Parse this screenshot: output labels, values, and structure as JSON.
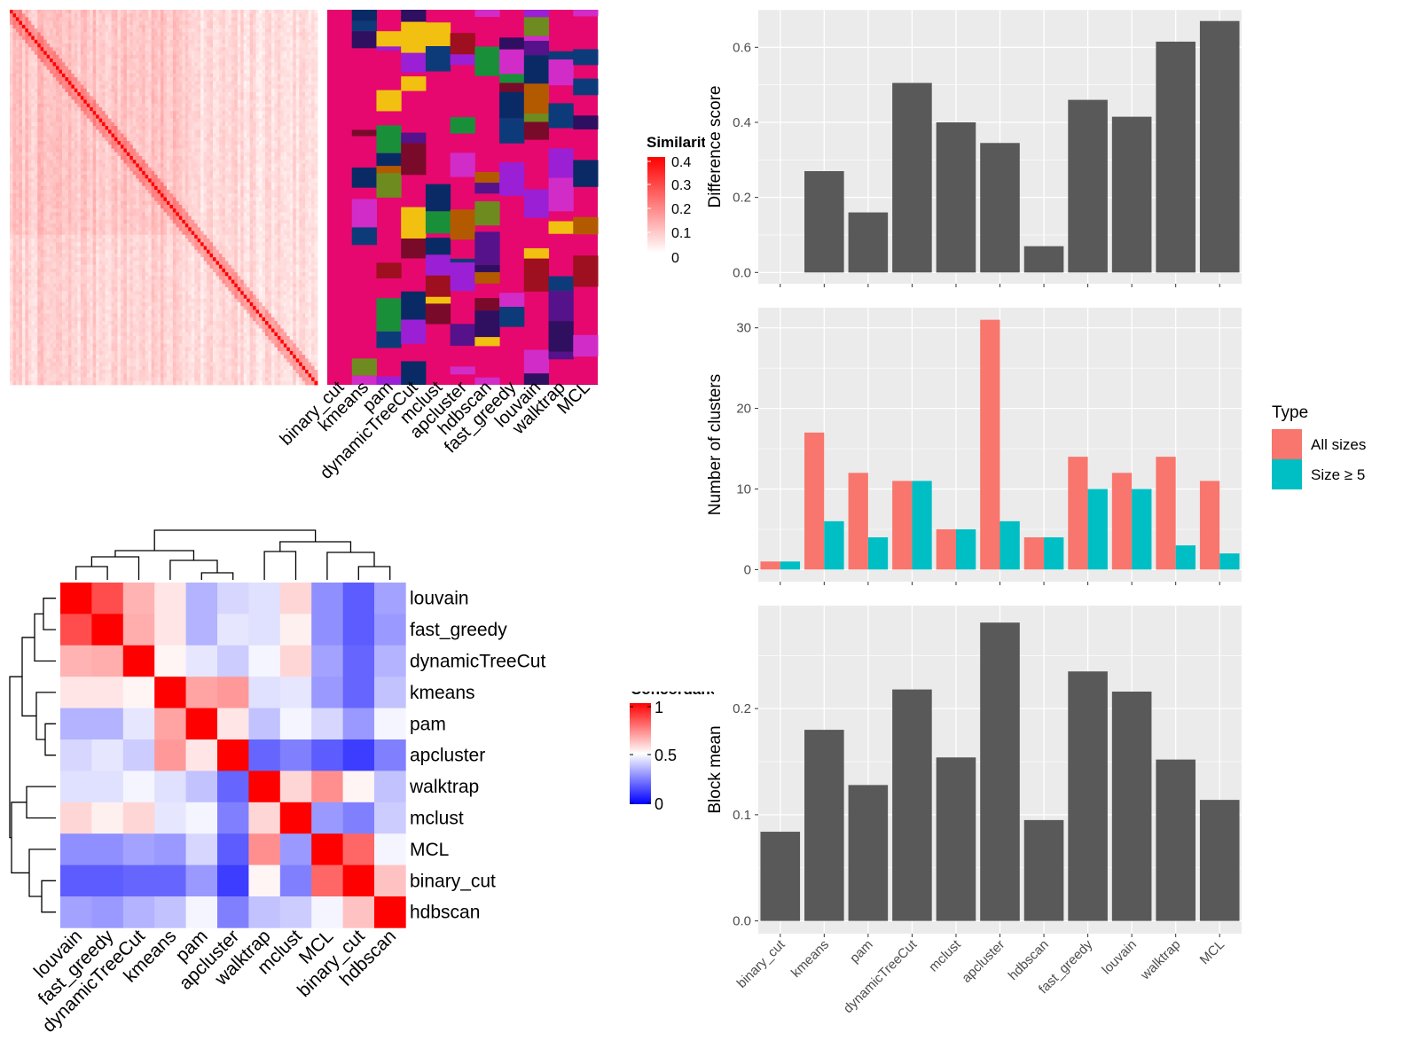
{
  "colors": {
    "heat_high": "#ff0000",
    "heat_mid": "#ffffff",
    "heat_low": "#0000ff",
    "cluster_bg": "#e6086e",
    "bar_dark": "#595959",
    "panel_bg": "#ebebeb",
    "all_sizes": "#f8766d",
    "size_ge5": "#00bfc4",
    "dendrogram": "#000000"
  },
  "similarity_heatmap": {
    "legend_title": "Similarity",
    "legend_ticks": [
      "0.4",
      "0.3",
      "0.2",
      "0.1",
      "0"
    ],
    "size": 100,
    "note": "sample-by-sample similarity, diagonal blocks strong"
  },
  "cluster_annotation": {
    "columns": [
      "binary_cut",
      "kmeans",
      "pam",
      "dynamicTreeCut",
      "mclust",
      "apcluster",
      "hdbscan",
      "fast_greedy",
      "louvain",
      "walktrap",
      "MCL"
    ]
  },
  "concordance_heatmap": {
    "legend_title": "Concordance",
    "legend_ticks": [
      "1",
      "0.5",
      "0"
    ],
    "labels": [
      "louvain",
      "fast_greedy",
      "dynamicTreeCut",
      "kmeans",
      "pam",
      "apcluster",
      "walktrap",
      "mclust",
      "MCL",
      "binary_cut",
      "hdbscan"
    ],
    "matrix": [
      [
        1.0,
        0.85,
        0.65,
        0.55,
        0.35,
        0.42,
        0.44,
        0.58,
        0.28,
        0.18,
        0.32
      ],
      [
        0.85,
        1.0,
        0.66,
        0.55,
        0.35,
        0.45,
        0.44,
        0.53,
        0.28,
        0.18,
        0.3
      ],
      [
        0.65,
        0.66,
        1.0,
        0.52,
        0.45,
        0.4,
        0.48,
        0.58,
        0.32,
        0.2,
        0.35
      ],
      [
        0.55,
        0.55,
        0.52,
        1.0,
        0.68,
        0.7,
        0.44,
        0.45,
        0.3,
        0.2,
        0.38
      ],
      [
        0.35,
        0.35,
        0.45,
        0.68,
        1.0,
        0.55,
        0.38,
        0.48,
        0.42,
        0.3,
        0.48
      ],
      [
        0.42,
        0.45,
        0.4,
        0.7,
        0.55,
        1.0,
        0.2,
        0.25,
        0.18,
        0.12,
        0.25
      ],
      [
        0.44,
        0.44,
        0.48,
        0.44,
        0.38,
        0.2,
        1.0,
        0.58,
        0.72,
        0.52,
        0.38
      ],
      [
        0.58,
        0.53,
        0.58,
        0.45,
        0.48,
        0.25,
        0.58,
        1.0,
        0.3,
        0.25,
        0.4
      ],
      [
        0.28,
        0.28,
        0.32,
        0.3,
        0.42,
        0.18,
        0.72,
        0.3,
        1.0,
        0.8,
        0.48
      ],
      [
        0.18,
        0.18,
        0.2,
        0.2,
        0.3,
        0.12,
        0.52,
        0.25,
        0.8,
        1.0,
        0.62
      ],
      [
        0.32,
        0.3,
        0.35,
        0.38,
        0.48,
        0.25,
        0.38,
        0.4,
        0.48,
        0.62,
        1.0
      ]
    ]
  },
  "chart_data": [
    {
      "type": "bar",
      "categories": [
        "binary_cut",
        "kmeans",
        "pam",
        "dynamicTreeCut",
        "mclust",
        "apcluster",
        "hdbscan",
        "fast_greedy",
        "louvain",
        "walktrap",
        "MCL"
      ],
      "values": [
        0,
        0.27,
        0.16,
        0.505,
        0.4,
        0.345,
        0.07,
        0.46,
        0.415,
        0.615,
        0.67
      ],
      "ylabel": "Difference score",
      "ylim": [
        -0.03,
        0.7
      ],
      "yticks": [
        "0.0",
        "0.2",
        "0.4",
        "0.6"
      ],
      "grid": true
    },
    {
      "type": "bar",
      "categories": [
        "binary_cut",
        "kmeans",
        "pam",
        "dynamicTreeCut",
        "mclust",
        "apcluster",
        "hdbscan",
        "fast_greedy",
        "louvain",
        "walktrap",
        "MCL"
      ],
      "series": [
        {
          "name": "All sizes",
          "values": [
            1,
            17,
            12,
            11,
            5,
            31,
            4,
            14,
            12,
            14,
            11
          ]
        },
        {
          "name": "Size ≥ 5",
          "values": [
            1,
            6,
            4,
            11,
            5,
            6,
            4,
            10,
            10,
            3,
            2
          ]
        }
      ],
      "ylabel": "Number of clusters",
      "ylim": [
        -1.5,
        32.5
      ],
      "yticks": [
        "0",
        "10",
        "20",
        "30"
      ],
      "legend_title": "Type",
      "legend_position": "right",
      "grid": true
    },
    {
      "type": "bar",
      "categories": [
        "binary_cut",
        "kmeans",
        "pam",
        "dynamicTreeCut",
        "mclust",
        "apcluster",
        "hdbscan",
        "fast_greedy",
        "louvain",
        "walktrap",
        "MCL"
      ],
      "values": [
        0.084,
        0.18,
        0.128,
        0.218,
        0.154,
        0.281,
        0.095,
        0.235,
        0.216,
        0.152,
        0.114
      ],
      "ylabel": "Block mean",
      "ylim": [
        -0.012,
        0.297
      ],
      "yticks": [
        "0.0",
        "0.1",
        "0.2"
      ],
      "grid": true
    }
  ]
}
